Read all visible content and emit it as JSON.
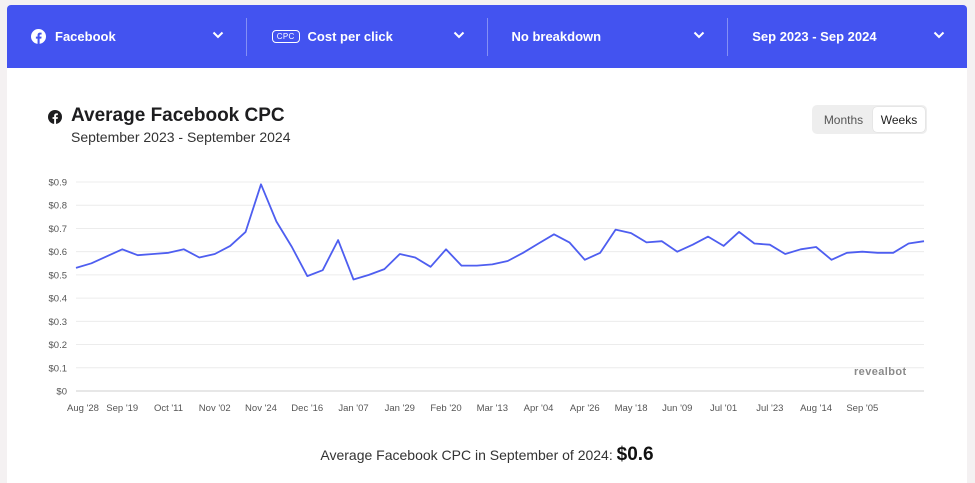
{
  "toolbar": {
    "platform": "Facebook",
    "metric_badge": "CPC",
    "metric": "Cost per click",
    "breakdown": "No breakdown",
    "date_range": "Sep 2023 - Sep 2024",
    "background_color": "#4353f0"
  },
  "header": {
    "title": "Average Facebook CPC",
    "subtitle": "September 2023 - September 2024",
    "toggle": {
      "months_label": "Months",
      "weeks_label": "Weeks",
      "selected": "Weeks"
    }
  },
  "watermark": "revealbot",
  "summary": {
    "text": "Average Facebook CPC in September of 2024:",
    "value": "$0.6"
  },
  "chart_data": {
    "type": "line",
    "ylim": [
      0,
      0.9
    ],
    "y_ticks": [
      "$0",
      "$0.1",
      "$0.2",
      "$0.3",
      "$0.4",
      "$0.5",
      "$0.6",
      "$0.7",
      "$0.8",
      "$0.9"
    ],
    "x_tick_labels": [
      "Aug '28",
      "Sep '19",
      "Oct '11",
      "Nov '02",
      "Nov '24",
      "Dec '16",
      "Jan '07",
      "Jan '29",
      "Feb '20",
      "Mar '13",
      "Apr '04",
      "Apr '26",
      "May '18",
      "Jun '09",
      "Jul '01",
      "Jul '23",
      "Aug '14",
      "Sep '05"
    ],
    "line_color": "#4e5ef0",
    "grid": true,
    "series": [
      {
        "values": [
          0.53,
          0.55,
          0.58,
          0.61,
          0.585,
          0.59,
          0.595,
          0.61,
          0.575,
          0.59,
          0.625,
          0.685,
          0.89,
          0.73,
          0.62,
          0.495,
          0.52,
          0.65,
          0.48,
          0.5,
          0.525,
          0.59,
          0.575,
          0.535,
          0.61,
          0.54,
          0.54,
          0.545,
          0.56,
          0.595,
          0.635,
          0.675,
          0.64,
          0.565,
          0.595,
          0.695,
          0.68,
          0.64,
          0.645,
          0.6,
          0.63,
          0.665,
          0.625,
          0.685,
          0.635,
          0.63,
          0.59,
          0.61,
          0.62,
          0.565,
          0.595,
          0.6,
          0.595,
          0.595,
          0.635,
          0.645
        ]
      }
    ]
  }
}
